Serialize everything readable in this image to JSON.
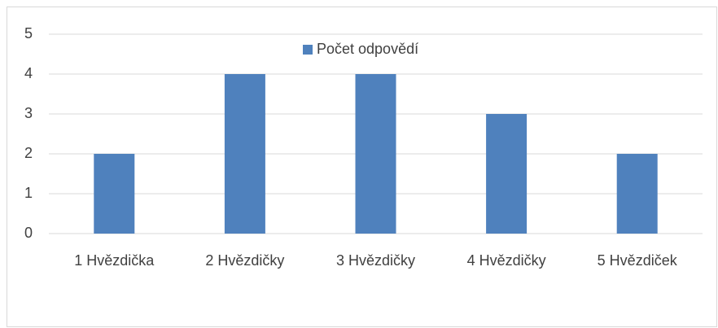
{
  "chart_data": {
    "type": "bar",
    "categories": [
      "1 Hvězdička",
      "2 Hvězdičky",
      "3 Hvězdičky",
      "4 Hvězdičky",
      "5 Hvězdiček"
    ],
    "series": [
      {
        "name": "Počet odpovědí",
        "color": "#4f81bd",
        "values": [
          2,
          4,
          4,
          3,
          2
        ]
      }
    ],
    "ylim": [
      0,
      5
    ],
    "yticks": [
      0,
      1,
      2,
      3,
      4,
      5
    ],
    "grid": true,
    "legend": "top"
  }
}
